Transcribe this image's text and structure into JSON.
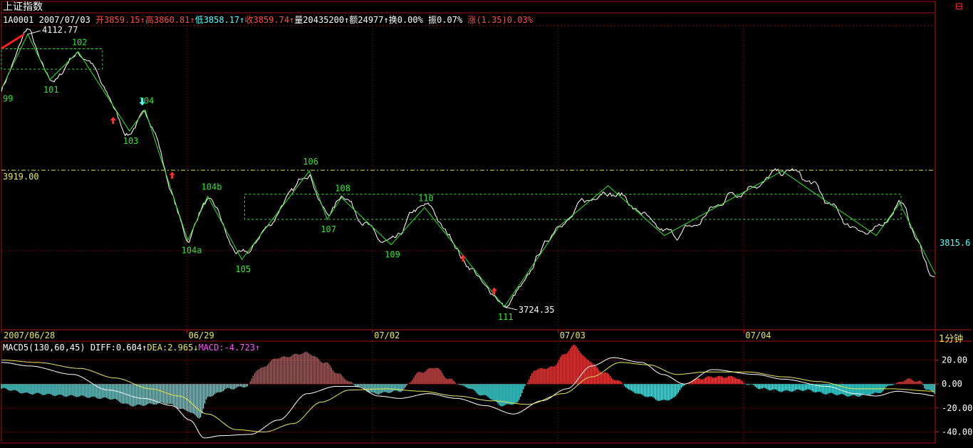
{
  "header": {
    "title": "上证指数",
    "code": "1A0001",
    "date": "2007/07/03",
    "open_label": "开3859.15",
    "high_label": "高3860.81",
    "low_label": "低3858.17",
    "close_label": "收3859.74",
    "volume_label": "量20435200",
    "amount_label": "额24977",
    "turnover_label": "换0.00%",
    "amplitude_label": "振0.07%",
    "change_label": "涨(1.35)0.03%",
    "corner_icon": "window-restore-icon",
    "period_label": "1分钟"
  },
  "colors": {
    "price_line": "#ffffff",
    "up": "#ff4d4d",
    "zigzag": "#2ee82e",
    "box": "#2ee82e",
    "guide": "#e8e850",
    "macd_pos": "#ff4d4d",
    "macd_neg": "#54ffff",
    "grid": "#a01010"
  },
  "chart_data": [
    {
      "type": "line",
      "name": "price",
      "ylim": [
        3705,
        4125
      ],
      "x_tick_labels": [
        {
          "label": "2007/06/28",
          "i": 0
        },
        {
          "label": "06/29",
          "i": 260
        },
        {
          "label": "07/02",
          "i": 521
        },
        {
          "label": "07/03",
          "i": 782
        },
        {
          "label": "07/04",
          "i": 1043
        }
      ],
      "guide_line": {
        "value": 3919.0,
        "label": "3919.00"
      },
      "last_value_label": {
        "value": 3815.6,
        "label": "3815.6"
      },
      "high_marker": {
        "i": 37,
        "value": 4112.77,
        "label": "4112.77"
      },
      "low_marker": {
        "i": 707,
        "value": 3724.35,
        "label": "3724.35"
      },
      "zigzag": [
        {
          "i": 0,
          "value": 4035,
          "label": "99",
          "pos": "below"
        },
        {
          "i": 37,
          "value": 4112.77,
          "label": "",
          "pos": "above"
        },
        {
          "i": 68,
          "value": 4048,
          "label": "101",
          "pos": "below"
        },
        {
          "i": 108,
          "value": 4088,
          "label": "102",
          "pos": "above"
        },
        {
          "i": 180,
          "value": 3975,
          "label": "103",
          "pos": "below"
        },
        {
          "i": 202,
          "value": 4005,
          "label": "104",
          "pos": "above"
        },
        {
          "i": 262,
          "value": 3819,
          "label": "104a",
          "pos": "below"
        },
        {
          "i": 290,
          "value": 3882,
          "label": "104b",
          "pos": "above"
        },
        {
          "i": 338,
          "value": 3792,
          "label": "105",
          "pos": "below"
        },
        {
          "i": 433,
          "value": 3918,
          "label": "106",
          "pos": "above"
        },
        {
          "i": 458,
          "value": 3849,
          "label": "107",
          "pos": "below"
        },
        {
          "i": 478,
          "value": 3880,
          "label": "108",
          "pos": "above"
        },
        {
          "i": 548,
          "value": 3813,
          "label": "109",
          "pos": "below"
        },
        {
          "i": 595,
          "value": 3866,
          "label": "110",
          "pos": "above"
        },
        {
          "i": 707,
          "value": 3724.35,
          "label": "111",
          "pos": "below"
        },
        {
          "i": 785,
          "value": 3840,
          "label": "",
          "pos": "above"
        },
        {
          "i": 853,
          "value": 3897,
          "label": "",
          "pos": "above"
        },
        {
          "i": 932,
          "value": 3826,
          "label": "",
          "pos": "below"
        },
        {
          "i": 1098,
          "value": 3918,
          "label": "",
          "pos": "above"
        },
        {
          "i": 1230,
          "value": 3826,
          "label": "",
          "pos": "below"
        },
        {
          "i": 1263,
          "value": 3872,
          "label": "",
          "pos": "above"
        },
        {
          "i": 1313,
          "value": 3771,
          "label": "",
          "pos": "below"
        }
      ],
      "boxes": [
        {
          "i0": 0,
          "i1": 142,
          "top": 4092,
          "bottom": 4063
        },
        {
          "i0": 342,
          "i1": 1265,
          "top": 3885,
          "bottom": 3849
        }
      ],
      "buy_arrows": [
        {
          "i": 157,
          "value": 3987
        },
        {
          "i": 240,
          "value": 3909
        },
        {
          "i": 649,
          "value": 3791
        },
        {
          "i": 693,
          "value": 3744
        }
      ],
      "sell_arrows": [
        {
          "i": 198,
          "value": 4013
        }
      ]
    },
    {
      "type": "bar",
      "name": "MACD",
      "title": "MACD5(130,60,45)",
      "diff_label": "DIFF:0.604",
      "dea_label": "DEA:2.965",
      "macd_label": "MACD:-4.723",
      "ylim": [
        -48,
        28
      ],
      "y_ticks": [
        {
          "value": 20,
          "label": "20.00"
        },
        {
          "value": 0,
          "label": "0.00"
        },
        {
          "value": -20,
          "label": "-20.00"
        },
        {
          "value": -40,
          "label": "-40.00"
        }
      ],
      "histogram_knots": [
        [
          0,
          -4
        ],
        [
          40,
          -8
        ],
        [
          100,
          -10
        ],
        [
          150,
          -12
        ],
        [
          185,
          -18
        ],
        [
          230,
          -16
        ],
        [
          260,
          -22
        ],
        [
          278,
          -28
        ],
        [
          292,
          -10
        ],
        [
          320,
          -4
        ],
        [
          345,
          -2
        ],
        [
          360,
          12
        ],
        [
          390,
          22
        ],
        [
          430,
          26
        ],
        [
          455,
          18
        ],
        [
          475,
          8
        ],
        [
          492,
          1
        ],
        [
          500,
          -2
        ],
        [
          525,
          -8
        ],
        [
          560,
          -6
        ],
        [
          590,
          10
        ],
        [
          610,
          14
        ],
        [
          630,
          4
        ],
        [
          650,
          -2
        ],
        [
          680,
          -10
        ],
        [
          705,
          -18
        ],
        [
          725,
          -16
        ],
        [
          738,
          0
        ],
        [
          750,
          12
        ],
        [
          775,
          14
        ],
        [
          790,
          24
        ],
        [
          805,
          32
        ],
        [
          825,
          20
        ],
        [
          845,
          10
        ],
        [
          870,
          2
        ],
        [
          885,
          -6
        ],
        [
          905,
          -10
        ],
        [
          930,
          -14
        ],
        [
          945,
          -12
        ],
        [
          958,
          -2
        ],
        [
          975,
          4
        ],
        [
          1000,
          6
        ],
        [
          1030,
          6
        ],
        [
          1048,
          0
        ],
        [
          1070,
          -4
        ],
        [
          1100,
          -6
        ],
        [
          1130,
          -5
        ],
        [
          1160,
          -8
        ],
        [
          1200,
          -10
        ],
        [
          1230,
          -8
        ],
        [
          1255,
          0
        ],
        [
          1275,
          4
        ],
        [
          1292,
          2
        ],
        [
          1300,
          -4
        ],
        [
          1313,
          -8
        ]
      ],
      "diff_knots": [
        [
          0,
          18
        ],
        [
          40,
          15
        ],
        [
          100,
          8
        ],
        [
          150,
          -5
        ],
        [
          200,
          -12
        ],
        [
          240,
          -18
        ],
        [
          265,
          -30
        ],
        [
          285,
          -45
        ],
        [
          310,
          -43
        ],
        [
          350,
          -42
        ],
        [
          390,
          -30
        ],
        [
          430,
          -8
        ],
        [
          470,
          -2
        ],
        [
          500,
          -2
        ],
        [
          530,
          -10
        ],
        [
          560,
          -12
        ],
        [
          600,
          -8
        ],
        [
          640,
          -12
        ],
        [
          680,
          -18
        ],
        [
          720,
          -25
        ],
        [
          760,
          -14
        ],
        [
          795,
          -4
        ],
        [
          830,
          15
        ],
        [
          860,
          22
        ],
        [
          900,
          18
        ],
        [
          930,
          8
        ],
        [
          960,
          0
        ],
        [
          1000,
          12
        ],
        [
          1060,
          8
        ],
        [
          1100,
          4
        ],
        [
          1160,
          -2
        ],
        [
          1200,
          -8
        ],
        [
          1230,
          -10
        ],
        [
          1260,
          -6
        ],
        [
          1290,
          -8
        ],
        [
          1313,
          -10
        ]
      ],
      "dea_knots": [
        [
          0,
          20
        ],
        [
          50,
          18
        ],
        [
          110,
          13
        ],
        [
          160,
          5
        ],
        [
          210,
          -4
        ],
        [
          250,
          -10
        ],
        [
          290,
          -25
        ],
        [
          330,
          -38
        ],
        [
          370,
          -40
        ],
        [
          410,
          -33
        ],
        [
          450,
          -15
        ],
        [
          490,
          -5
        ],
        [
          540,
          -4
        ],
        [
          590,
          -6
        ],
        [
          640,
          -10
        ],
        [
          690,
          -14
        ],
        [
          740,
          -17
        ],
        [
          790,
          -8
        ],
        [
          830,
          6
        ],
        [
          870,
          18
        ],
        [
          910,
          16
        ],
        [
          950,
          8
        ],
        [
          990,
          10
        ],
        [
          1050,
          10
        ],
        [
          1100,
          6
        ],
        [
          1150,
          2
        ],
        [
          1200,
          -4
        ],
        [
          1250,
          -4
        ],
        [
          1313,
          -6
        ]
      ]
    }
  ]
}
